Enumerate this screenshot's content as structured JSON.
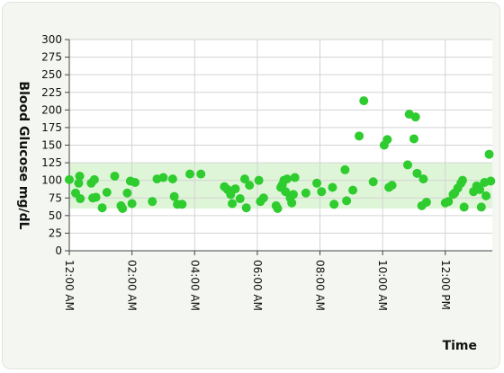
{
  "chart_data": {
    "type": "scatter",
    "title": "",
    "xlabel": "Time",
    "ylabel": "Blood Glucose mg/dL",
    "ylim": [
      0,
      300
    ],
    "yticks": [
      0,
      25,
      50,
      75,
      100,
      125,
      150,
      175,
      200,
      225,
      250,
      275,
      300
    ],
    "xlim": [
      "12:00 AM",
      "1:10 PM"
    ],
    "xticks": [
      {
        "label": "12:00 AM",
        "hour": 0
      },
      {
        "label": "02:00 AM",
        "hour": 2
      },
      {
        "label": "04:00 AM",
        "hour": 4
      },
      {
        "label": "06:00 AM",
        "hour": 6
      },
      {
        "label": "08:00 AM",
        "hour": 8
      },
      {
        "label": "10:00 AM",
        "hour": 10
      },
      {
        "label": "12:00 PM",
        "hour": 12
      }
    ],
    "target_band": [
      60,
      125
    ],
    "grid": true,
    "legend": "none",
    "colors": {
      "point": "#2ecc2e",
      "band": "#dff5d8",
      "grid": "#d3d3d3",
      "axis": "#444444"
    },
    "series": [
      {
        "points": [
          [
            0.0,
            101
          ],
          [
            0.2,
            82
          ],
          [
            0.3,
            96
          ],
          [
            0.33,
            106
          ],
          [
            0.35,
            74
          ],
          [
            0.7,
            96
          ],
          [
            0.75,
            75
          ],
          [
            0.8,
            101
          ],
          [
            0.85,
            76
          ],
          [
            1.05,
            61
          ],
          [
            1.2,
            83
          ],
          [
            1.45,
            106
          ],
          [
            1.65,
            64
          ],
          [
            1.7,
            60
          ],
          [
            1.85,
            82
          ],
          [
            1.95,
            99
          ],
          [
            2.0,
            67
          ],
          [
            2.1,
            97
          ],
          [
            2.65,
            70
          ],
          [
            2.8,
            102
          ],
          [
            3.0,
            104
          ],
          [
            3.3,
            102
          ],
          [
            3.35,
            77
          ],
          [
            3.45,
            66
          ],
          [
            3.6,
            66
          ],
          [
            3.85,
            109
          ],
          [
            4.2,
            109
          ],
          [
            4.95,
            91
          ],
          [
            5.05,
            87
          ],
          [
            5.15,
            80
          ],
          [
            5.2,
            67
          ],
          [
            5.3,
            88
          ],
          [
            5.45,
            74
          ],
          [
            5.6,
            102
          ],
          [
            5.65,
            61
          ],
          [
            5.75,
            93
          ],
          [
            6.05,
            100
          ],
          [
            6.1,
            70
          ],
          [
            6.2,
            75
          ],
          [
            6.6,
            64
          ],
          [
            6.65,
            60
          ],
          [
            6.75,
            90
          ],
          [
            6.8,
            94
          ],
          [
            6.85,
            100
          ],
          [
            6.9,
            84
          ],
          [
            6.95,
            102
          ],
          [
            7.05,
            75
          ],
          [
            7.1,
            68
          ],
          [
            7.15,
            80
          ],
          [
            7.2,
            104
          ],
          [
            7.55,
            82
          ],
          [
            7.9,
            96
          ],
          [
            8.05,
            84
          ],
          [
            8.4,
            90
          ],
          [
            8.45,
            66
          ],
          [
            8.8,
            115
          ],
          [
            8.85,
            71
          ],
          [
            9.05,
            86
          ],
          [
            9.25,
            163
          ],
          [
            9.4,
            213
          ],
          [
            9.7,
            98
          ],
          [
            10.05,
            150
          ],
          [
            10.15,
            158
          ],
          [
            10.2,
            90
          ],
          [
            10.3,
            93
          ],
          [
            10.8,
            122
          ],
          [
            10.85,
            194
          ],
          [
            11.0,
            159
          ],
          [
            11.05,
            190
          ],
          [
            11.1,
            110
          ],
          [
            11.25,
            64
          ],
          [
            11.3,
            102
          ],
          [
            11.4,
            69
          ],
          [
            12.0,
            68
          ],
          [
            12.1,
            70
          ],
          [
            12.25,
            80
          ],
          [
            12.3,
            82
          ],
          [
            12.4,
            89
          ],
          [
            12.5,
            96
          ],
          [
            12.55,
            100
          ],
          [
            12.6,
            62
          ],
          [
            12.9,
            84
          ],
          [
            13.0,
            92
          ],
          [
            13.1,
            87
          ],
          [
            13.15,
            62
          ],
          [
            13.25,
            97
          ],
          [
            13.3,
            78
          ],
          [
            13.4,
            137
          ],
          [
            13.45,
            99
          ]
        ]
      }
    ]
  }
}
